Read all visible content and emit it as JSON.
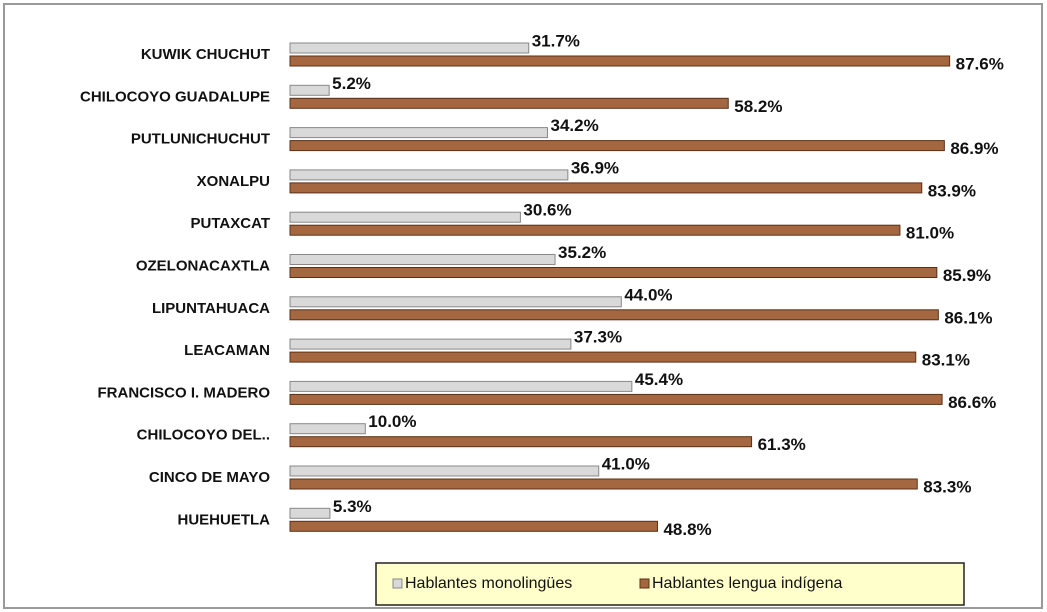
{
  "chart_data": {
    "type": "barh",
    "categories": [
      "KUWIK CHUCHUT",
      "CHILOCOYO GUADALUPE",
      "PUTLUNICHUCHUT",
      "XONALPU",
      "PUTAXCAT",
      "OZELONACAXTLA",
      "LIPUNTAHUACA",
      "LEACAMAN",
      "FRANCISCO I. MADERO",
      "CHILOCOYO DEL..",
      "CINCO DE MAYO",
      "HUEHUETLA"
    ],
    "xlim": [
      0,
      100
    ],
    "series": [
      {
        "name": "Hablantes monolingües",
        "color": "#d9d9d9",
        "values": [
          31.7,
          5.2,
          34.2,
          36.9,
          30.6,
          35.2,
          44.0,
          37.3,
          45.4,
          10.0,
          41.0,
          5.3
        ],
        "value_labels": [
          "31.7%",
          "5.2%",
          "34.2%",
          "36.9%",
          "30.6%",
          "35.2%",
          "44.0%",
          "37.3%",
          "45.4%",
          "10.0%",
          "41.0%",
          "5.3%"
        ]
      },
      {
        "name": "Hablantes lengua indígena",
        "color": "#a5673f",
        "values": [
          87.6,
          58.2,
          86.9,
          83.9,
          81.0,
          85.9,
          86.1,
          83.1,
          86.6,
          61.3,
          83.3,
          48.8
        ],
        "value_labels": [
          "87.6%",
          "58.2%",
          "86.9%",
          "83.9%",
          "81.0%",
          "85.9%",
          "86.1%",
          "83.1%",
          "86.6%",
          "61.3%",
          "83.3%",
          "48.8%"
        ]
      }
    ],
    "legend": "bottom"
  }
}
